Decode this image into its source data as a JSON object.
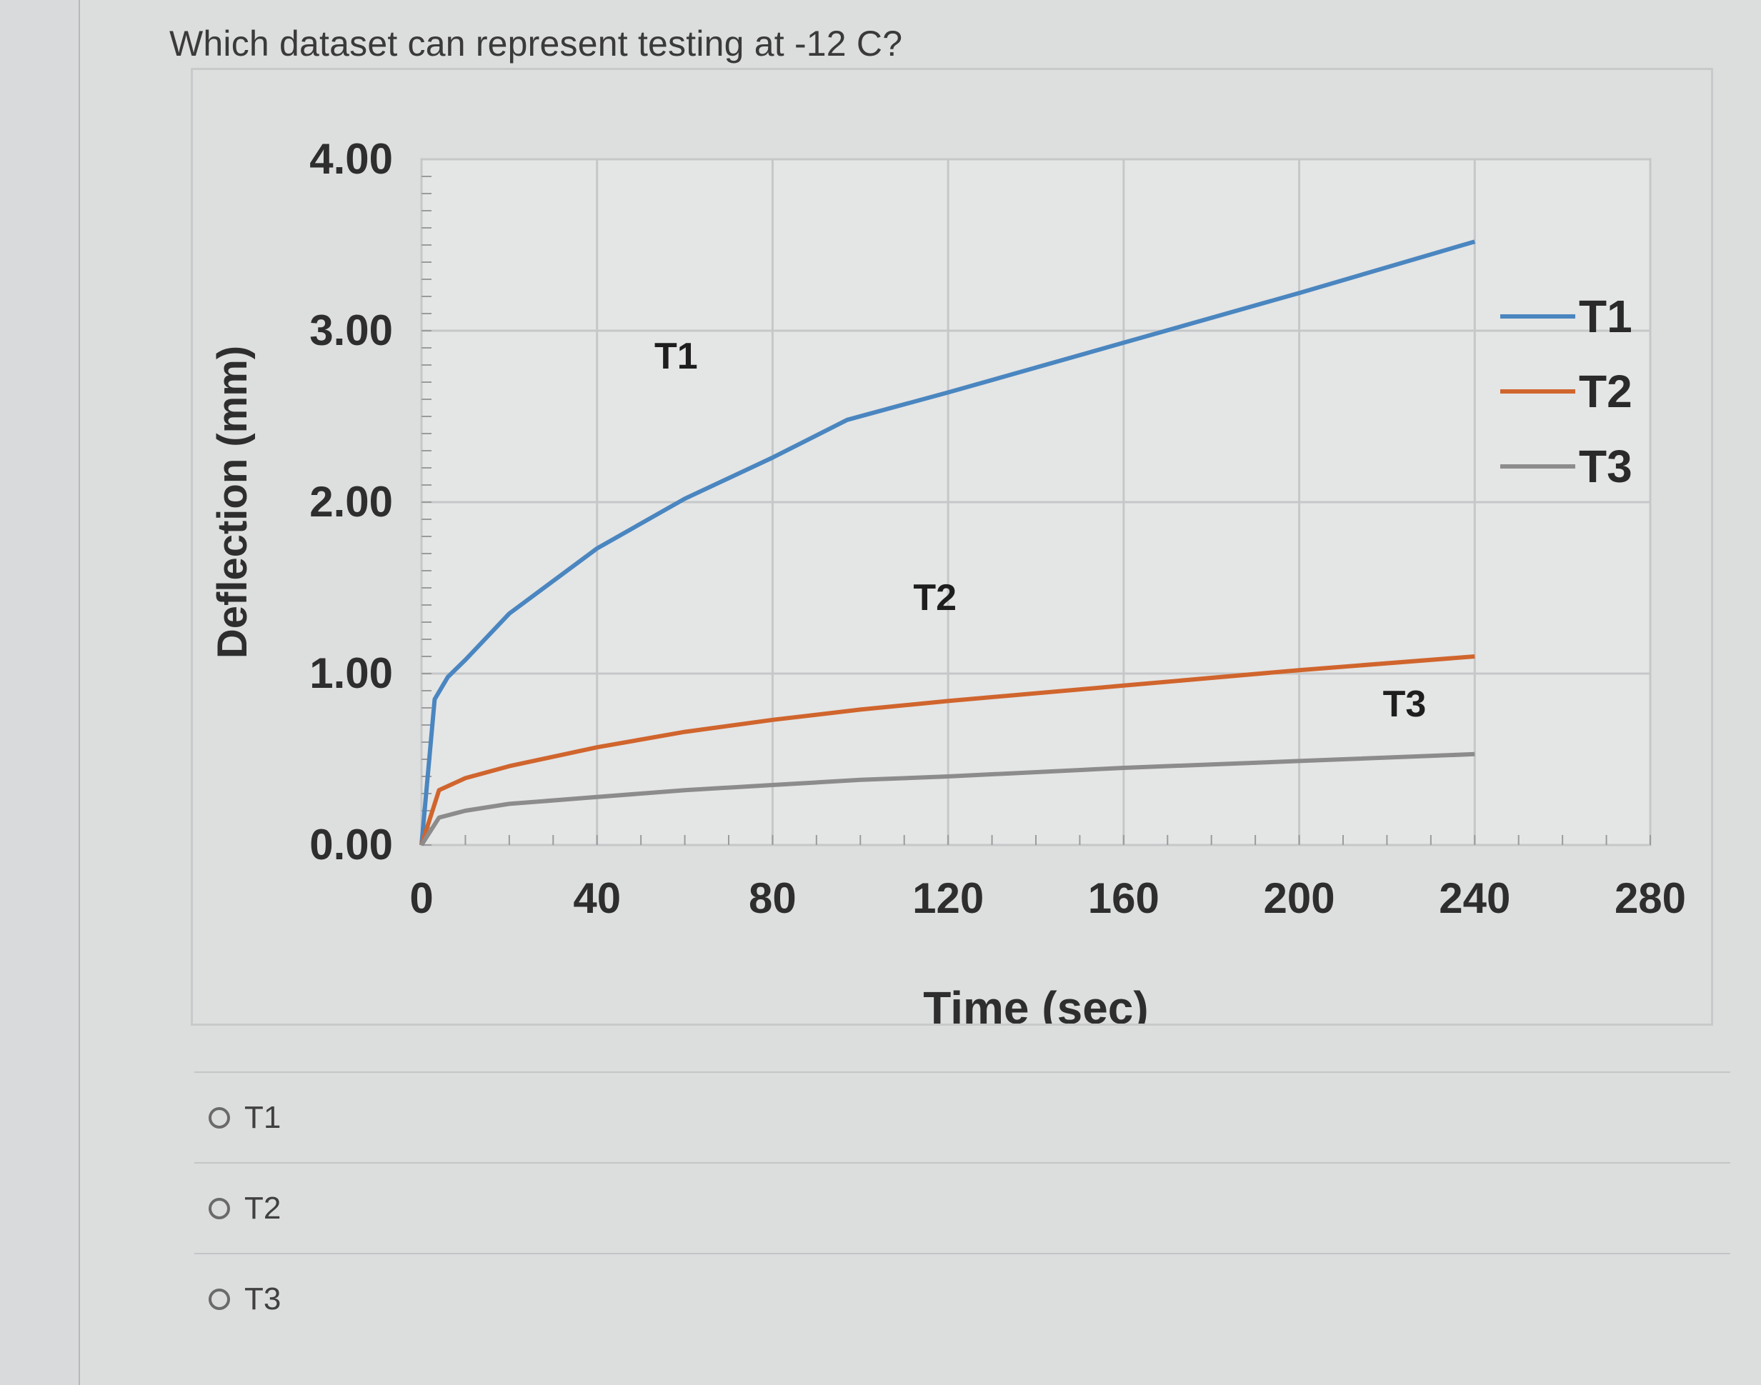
{
  "question": {
    "text": "Which dataset can represent testing at -12 C?"
  },
  "chart_data": {
    "type": "line",
    "title": "",
    "xlabel": "Time (sec)",
    "ylabel": "Deflection (mm)",
    "xlim": [
      0,
      280
    ],
    "ylim": [
      0,
      4
    ],
    "x_ticks": [
      "0",
      "40",
      "80",
      "120",
      "160",
      "200",
      "240",
      "280"
    ],
    "y_ticks": [
      "0.00",
      "1.00",
      "2.00",
      "3.00",
      "4.00"
    ],
    "grid": true,
    "legend_position": "right",
    "series": [
      {
        "name": "T1",
        "color": "#4a86c0",
        "x": [
          0,
          3,
          6,
          10,
          20,
          40,
          60,
          80,
          97,
          120,
          160,
          200,
          240
        ],
        "y": [
          0,
          0.85,
          0.98,
          1.08,
          1.35,
          1.73,
          2.02,
          2.26,
          2.48,
          2.64,
          2.93,
          3.22,
          3.52
        ]
      },
      {
        "name": "T2",
        "color": "#d0652d",
        "x": [
          0,
          4,
          10,
          20,
          40,
          60,
          80,
          100,
          120,
          160,
          200,
          240
        ],
        "y": [
          0,
          0.32,
          0.39,
          0.46,
          0.57,
          0.66,
          0.73,
          0.79,
          0.84,
          0.93,
          1.02,
          1.1
        ]
      },
      {
        "name": "T3",
        "color": "#8c8c8c",
        "x": [
          0,
          4,
          10,
          20,
          40,
          60,
          80,
          100,
          120,
          160,
          200,
          240
        ],
        "y": [
          0,
          0.16,
          0.2,
          0.24,
          0.28,
          0.32,
          0.35,
          0.38,
          0.4,
          0.45,
          0.49,
          0.53
        ]
      }
    ],
    "annotations": [
      {
        "text": "T1",
        "x": 58,
        "y": 2.78
      },
      {
        "text": "T2",
        "x": 117,
        "y": 1.37
      },
      {
        "text": "T3",
        "x": 224,
        "y": 0.75
      }
    ]
  },
  "options": [
    {
      "label": "T1"
    },
    {
      "label": "T2"
    },
    {
      "label": "T3"
    }
  ]
}
